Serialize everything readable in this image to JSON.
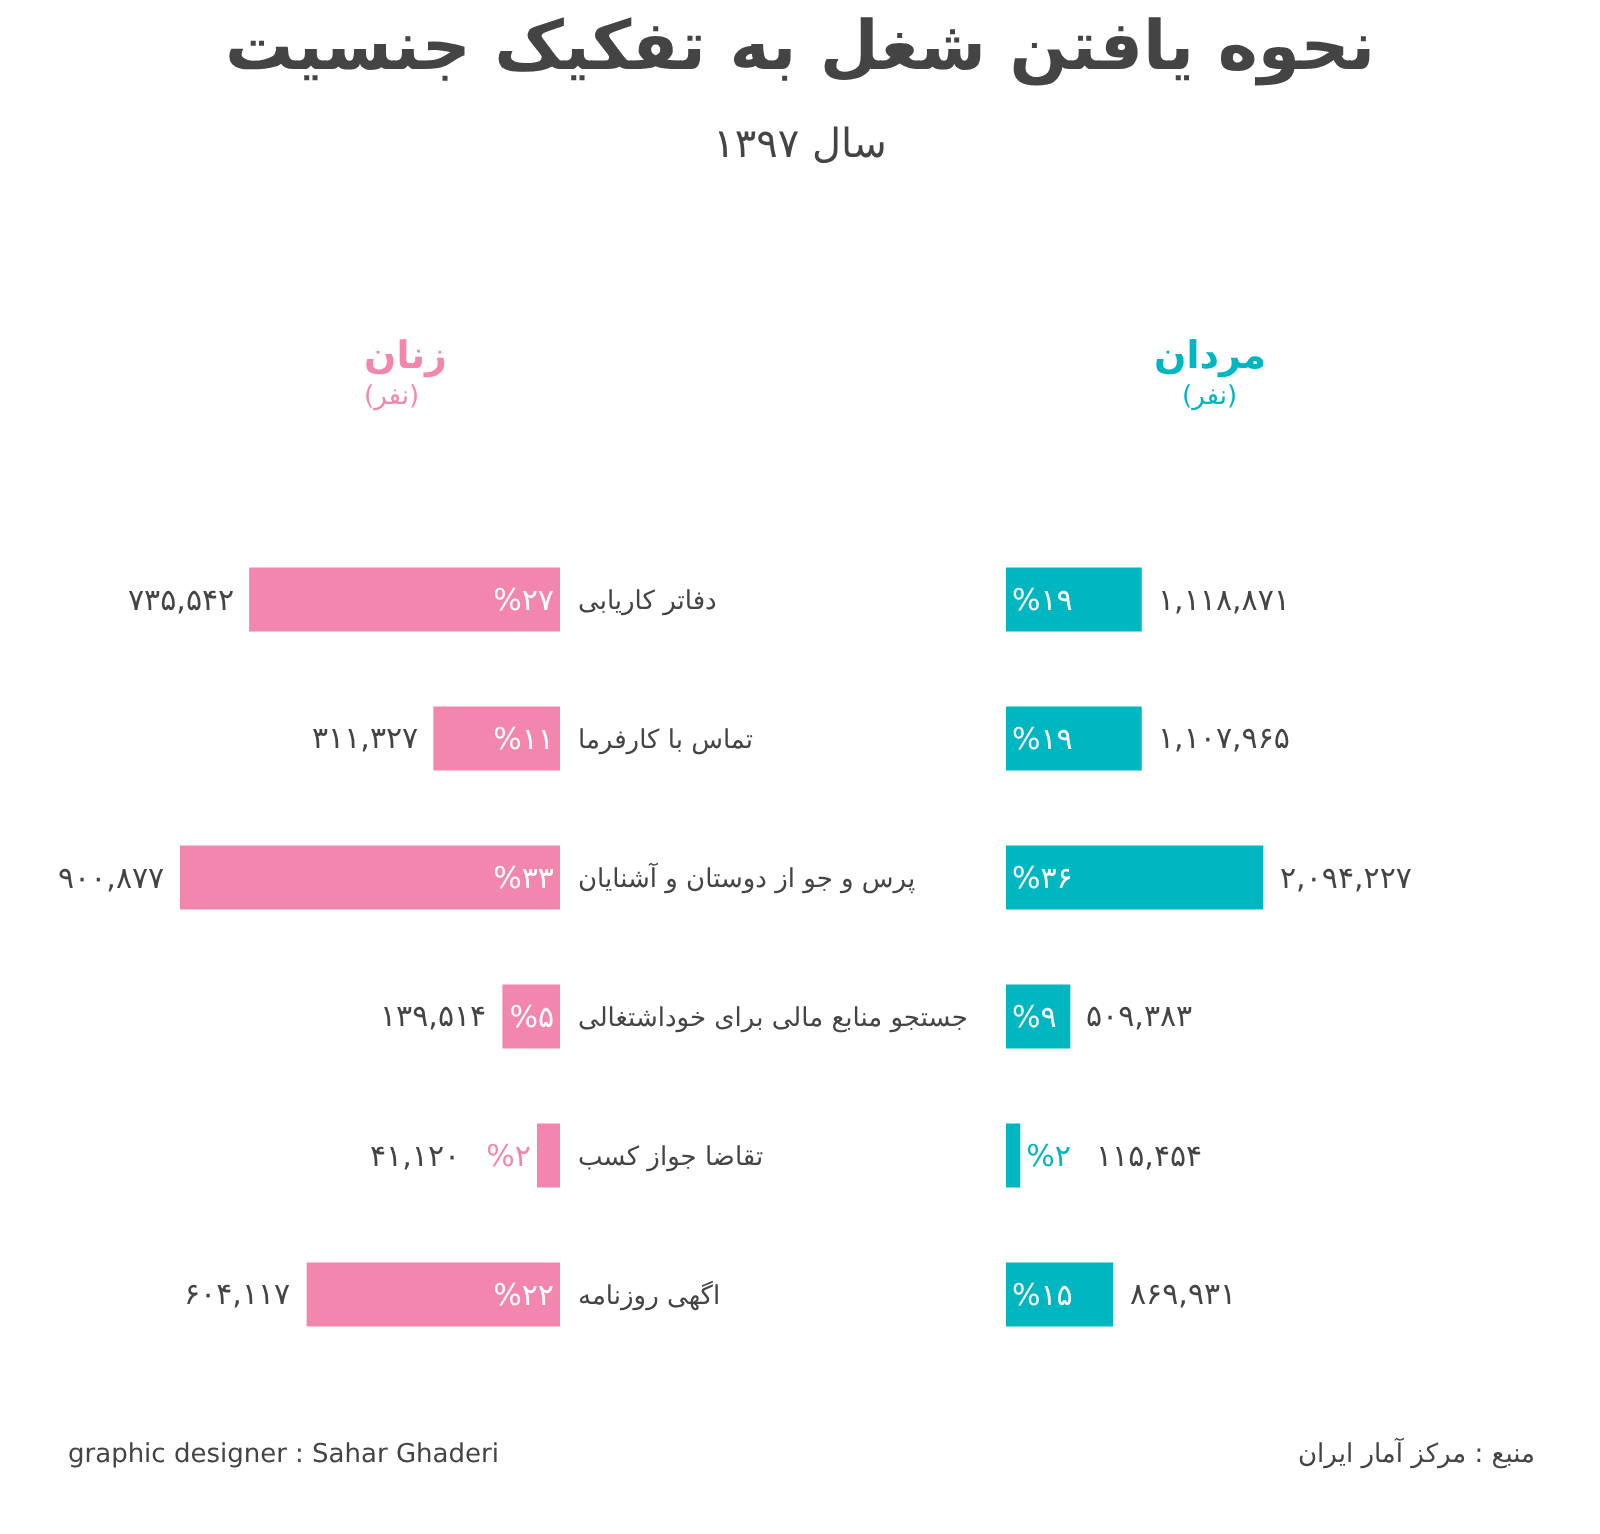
{
  "chart_data": [
    {
      "type": "bar",
      "orientation": "horizontal",
      "title": "نحوه یافتن شغل به تفکیک جنسیت",
      "subtitle": "سال ۱۳۹۷",
      "categories": [
        "دفاتر کاریابی",
        "تماس با کارفرما",
        "پرس و جو از دوستان و آشنایان",
        "جستجو منابع مالی برای خوداشتغالی",
        "تقاضا جواز کسب",
        "اگهی روزنامه"
      ],
      "series": [
        {
          "name": "زنان",
          "color": "#f386ae",
          "values": [
            27,
            11,
            33,
            5,
            2,
            22
          ],
          "value_labels": [
            "%۲۷",
            "%۱۱",
            "%۳۳",
            "%۵",
            "%۲",
            "%۲۲"
          ]
        }
      ],
      "tick_labels": "y",
      "grid": false,
      "legend": false,
      "annotations": [
        "(نفر)",
        "graphic designer : Sahar Ghaderi",
        {
          "text": "۷۳۵,۵۴۲",
          "x": 27,
          "y": "دفاتر کاریابی"
        },
        {
          "text": "۳۱۱,۳۲۷",
          "x": 11,
          "y": "تماس با کارفرما"
        },
        {
          "text": "۹۰۰,۸۷۷",
          "x": 33,
          "y": "پرس و جو از دوستان و آشنایان"
        },
        {
          "text": "۱۳۹,۵۱۴",
          "x": 5,
          "y": "جستجو منابع مالی برای خوداشتغالی"
        },
        {
          "text": "۴۱,۱۲۰",
          "x": 2,
          "y": "تقاضا جواز کسب"
        },
        {
          "text": "۶۰۴,۱۱۷",
          "x": 22,
          "y": "اگهی روزنامه"
        }
      ]
    },
    {
      "type": "bar",
      "orientation": "horizontal",
      "categories": [
        "دفاتر کاریابی",
        "تماس با کارفرما",
        "پرس و جو از دوستان و آشنایان",
        "جستجو منابع مالی برای خوداشتغالی",
        "تقاضا جواز کسب",
        "اگهی روزنامه"
      ],
      "series": [
        {
          "name": "مردان",
          "color": "#00b6c1",
          "values": [
            19,
            19,
            36,
            9,
            2,
            15
          ],
          "value_labels": [
            "%۱۹",
            "%۱۹",
            "%۳۶",
            "%۹",
            "%۲",
            "%۱۵"
          ]
        }
      ],
      "tick_labels": false,
      "grid": false,
      "legend": false,
      "annotations": [
        "(نفر)",
        "منبع : مرکز آمار ایران",
        {
          "text": "۱,۱۱۸,۸۷۱",
          "x": 19,
          "y": "دفاتر کاریابی"
        },
        {
          "text": "۱,۱۰۷,۹۶۵",
          "x": 19,
          "y": "تماس با کارفرما"
        },
        {
          "text": "۲,۰۹۴,۲۲۷",
          "x": 36,
          "y": "پرس و جو از دوستان و آشنایان"
        },
        {
          "text": "۵۰۹,۳۸۳",
          "x": 9,
          "y": "جستجو منابع مالی برای خوداشتغالی"
        },
        {
          "text": "۱۱۵,۴۵۴",
          "x": 2,
          "y": "تقاضا جواز کسب"
        },
        {
          "text": "۸۶۹,۹۳۱",
          "x": 15,
          "y": "اگهی روزنامه"
        }
      ]
    }
  ]
}
